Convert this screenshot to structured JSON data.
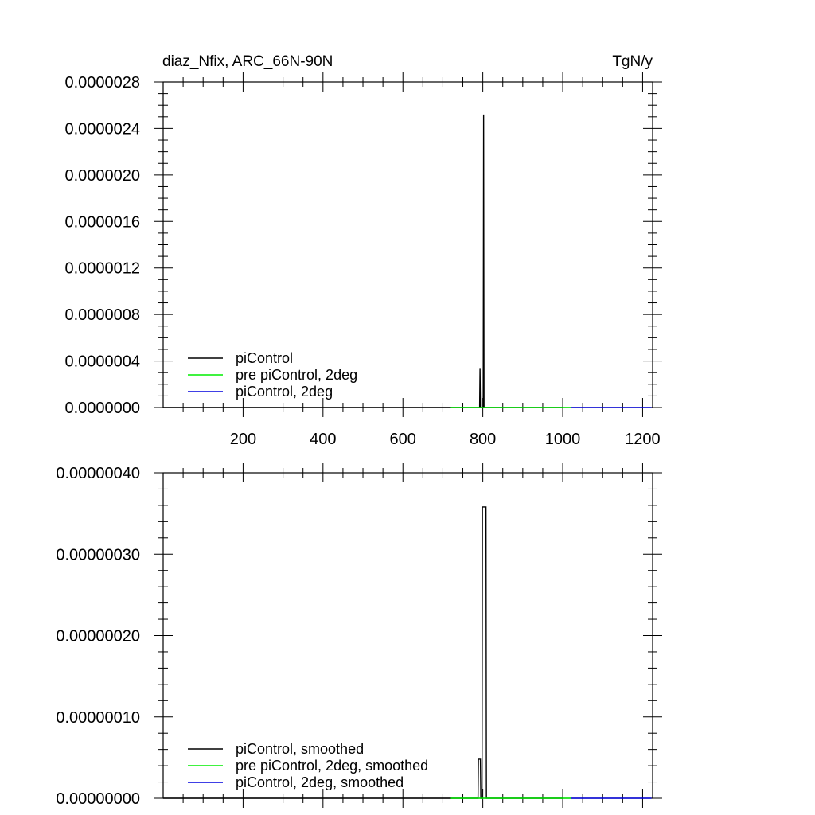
{
  "header": {
    "left_title": "diaz_Nfix, ARC_66N-90N",
    "right_title": "TgN/y"
  },
  "colors": {
    "piControl": "#000000",
    "pre_piControl_2deg": "#00ee00",
    "piControl_2deg": "#0000dd"
  },
  "chart_data": [
    {
      "type": "line",
      "panel": "top",
      "xlim": [
        0,
        1225
      ],
      "ylim": [
        0,
        2.8e-06
      ],
      "x_ticks": [
        200,
        400,
        600,
        800,
        1000,
        1200
      ],
      "x_tick_labels": [
        "200",
        "400",
        "600",
        "800",
        "1000",
        "1200"
      ],
      "y_ticks": [
        0,
        4e-07,
        8e-07,
        1.2e-06,
        1.6e-06,
        2e-06,
        2.4e-06,
        2.8e-06
      ],
      "y_tick_labels": [
        "0.0000000",
        "0.0000004",
        "0.0000008",
        "0.0000012",
        "0.0000016",
        "0.0000020",
        "0.0000024",
        "0.0000028"
      ],
      "legend_position": "bottom-left",
      "series": [
        {
          "name": "piControl",
          "color": "#000000",
          "points": [
            [
              0,
              0
            ],
            [
              792,
              0
            ],
            [
              793,
              3.4e-07
            ],
            [
              794,
              0
            ],
            [
              801,
              0
            ],
            [
              802,
              2.52e-06
            ],
            [
              803,
              0
            ],
            [
              1000,
              0
            ]
          ]
        },
        {
          "name": "pre piControl, 2deg",
          "color": "#00ee00",
          "points": [
            [
              720,
              0
            ],
            [
              1020,
              0
            ]
          ]
        },
        {
          "name": "piControl, 2deg",
          "color": "#0000dd",
          "points": [
            [
              1020,
              0
            ],
            [
              1222,
              0
            ]
          ]
        }
      ]
    },
    {
      "type": "line",
      "panel": "bottom",
      "xlim": [
        0,
        1225
      ],
      "ylim": [
        0,
        4e-07
      ],
      "x_ticks": [
        200,
        400,
        600,
        800,
        1000,
        1200
      ],
      "x_tick_labels": [],
      "y_ticks": [
        0,
        1e-07,
        2e-07,
        3e-07,
        4e-07
      ],
      "y_tick_labels": [
        "0.00000000",
        "0.00000010",
        "0.00000020",
        "0.00000030",
        "0.00000040"
      ],
      "legend_position": "bottom-left",
      "series": [
        {
          "name": "piControl, smoothed",
          "color": "#000000",
          "points": [
            [
              0,
              0
            ],
            [
              788,
              0
            ],
            [
              789,
              4.8e-08
            ],
            [
              794,
              4.8e-08
            ],
            [
              795,
              0
            ],
            [
              798,
              0
            ],
            [
              799,
              3.58e-07
            ],
            [
              808,
              3.58e-07
            ],
            [
              809,
              0
            ],
            [
              1000,
              0
            ]
          ]
        },
        {
          "name": "pre piControl, 2deg, smoothed",
          "color": "#00ee00",
          "points": [
            [
              720,
              0
            ],
            [
              1020,
              0
            ]
          ]
        },
        {
          "name": "piControl, 2deg, smoothed",
          "color": "#0000dd",
          "points": [
            [
              1020,
              0
            ],
            [
              1222,
              0
            ]
          ]
        }
      ]
    }
  ]
}
